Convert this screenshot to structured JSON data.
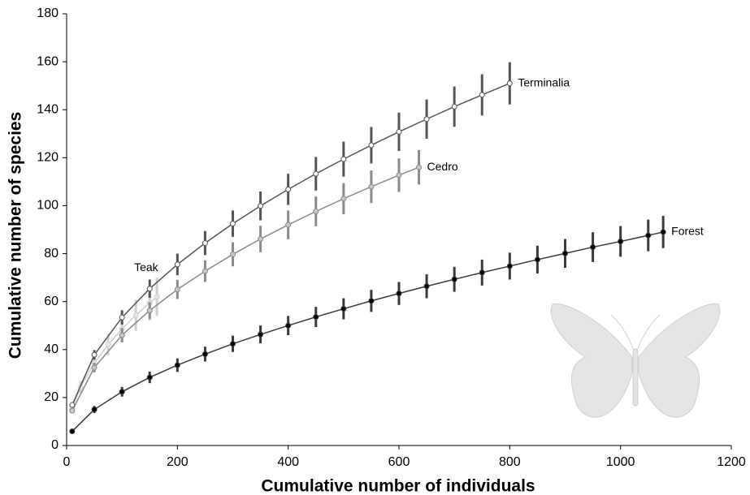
{
  "chart_data": {
    "type": "line",
    "xlabel": "Cumulative number of individuals",
    "ylabel": "Cumulative number of species",
    "xlim": [
      0,
      1200
    ],
    "xticks": [
      0,
      200,
      400,
      600,
      800,
      1000,
      1200
    ],
    "ylim": [
      0,
      180
    ],
    "yticks": [
      0,
      20,
      40,
      60,
      80,
      100,
      120,
      140,
      160,
      180
    ],
    "grid": false,
    "series": [
      {
        "name": "Teak",
        "color": "#d0d0d0",
        "marker_fill": "#e6e6e6",
        "x": [
          10,
          25,
          50,
          75,
          100,
          125,
          150,
          163
        ],
        "values": [
          15.4,
          24.3,
          34.4,
          42.1,
          48.6,
          54.3,
          59.5,
          62.0
        ],
        "errors": [
          1.5,
          2.5,
          3.5,
          4.5,
          5.5,
          6.5,
          7.5,
          8.0
        ]
      },
      {
        "name": "Cedro",
        "color": "#8a8a8a",
        "marker_fill": "#c8c8c8",
        "x": [
          10,
          50,
          100,
          150,
          200,
          250,
          300,
          350,
          400,
          450,
          500,
          550,
          600,
          636
        ],
        "values": [
          14.5,
          32.5,
          46.0,
          56.3,
          65.1,
          72.7,
          79.7,
          86.1,
          92.0,
          97.6,
          102.9,
          107.9,
          112.7,
          116.0
        ],
        "errors": [
          1.0,
          2.0,
          3.0,
          3.5,
          4.0,
          4.5,
          5.0,
          5.5,
          6.0,
          6.2,
          6.5,
          6.8,
          7.0,
          7.2
        ]
      },
      {
        "name": "Terminalia",
        "color": "#555555",
        "marker_fill": "#ffffff",
        "x": [
          10,
          50,
          100,
          150,
          200,
          250,
          300,
          350,
          400,
          450,
          500,
          550,
          600,
          650,
          700,
          750,
          800
        ],
        "values": [
          16.9,
          37.8,
          53.4,
          65.4,
          75.5,
          84.4,
          92.5,
          99.9,
          106.8,
          113.3,
          119.4,
          125.2,
          130.8,
          136.1,
          141.3,
          146.2,
          151.0
        ],
        "errors": [
          1.0,
          2.0,
          3.0,
          3.8,
          4.5,
          5.0,
          5.5,
          6.0,
          6.5,
          7.0,
          7.3,
          7.6,
          8.0,
          8.2,
          8.4,
          8.6,
          8.8
        ]
      },
      {
        "name": "Forest",
        "color": "#3a3a3a",
        "marker_fill": "#000000",
        "x": [
          10,
          50,
          100,
          150,
          200,
          250,
          300,
          350,
          400,
          450,
          500,
          550,
          600,
          650,
          700,
          750,
          800,
          850,
          900,
          950,
          1000,
          1050,
          1077
        ],
        "values": [
          5.9,
          15.0,
          22.4,
          28.4,
          33.5,
          38.1,
          42.4,
          46.3,
          50.0,
          53.6,
          57.0,
          60.3,
          63.4,
          66.4,
          69.3,
          72.1,
          74.8,
          77.5,
          80.1,
          82.7,
          85.1,
          87.6,
          89.0
        ],
        "errors": [
          0.8,
          1.5,
          2.0,
          2.4,
          2.8,
          3.1,
          3.4,
          3.7,
          4.0,
          4.2,
          4.4,
          4.6,
          4.8,
          5.0,
          5.2,
          5.4,
          5.6,
          5.8,
          6.0,
          6.2,
          6.4,
          6.6,
          6.7
        ]
      }
    ]
  }
}
